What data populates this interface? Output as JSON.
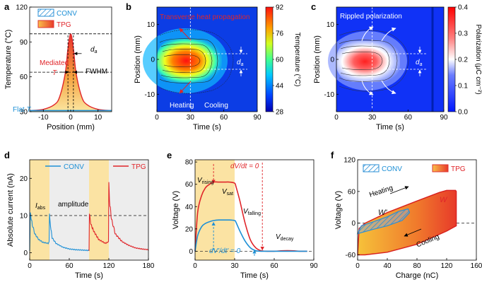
{
  "panels": {
    "a": {
      "letter": "a"
    },
    "b": {
      "letter": "b",
      "heat_label": "Transverse heat propagation",
      "heating_label": "Heating",
      "cooling_label": "Cooling",
      "da_label": "d",
      "da_sub": "a",
      "cbar_label": "Temperature (°C)"
    },
    "c": {
      "letter": "c",
      "title_label": "Rippled polarization",
      "da_label": "d",
      "da_sub": "a",
      "cbar_label": "Polarization (μC cm⁻²)"
    },
    "d": {
      "letter": "d",
      "iabs_label": "I",
      "iabs_sub": "abs",
      "amp_label": "amplitude"
    },
    "e": {
      "letter": "e",
      "vrising": "V",
      "vrising_sub": "rising",
      "vsat": "V",
      "vsat_sub": "sat",
      "vfalling": "V",
      "vfalling_sub": "falling",
      "vdecay": "V",
      "vdecay_sub": "decay",
      "dvdt_red": "dV/dt = 0",
      "dvdt_blue": "dV'/dt' = 0"
    },
    "f": {
      "letter": "f",
      "w_label": "W",
      "wp_label": "W'",
      "heating_label": "Heating",
      "cooling_label": "Cooling"
    }
  },
  "chart_data": [
    {
      "id": "a",
      "type": "line",
      "title": "",
      "xlabel": "Position (mm)",
      "ylabel": "Temperature (°C)",
      "xlim": [
        -15,
        15
      ],
      "ylim": [
        30,
        120
      ],
      "xticks": [
        -10,
        0,
        10
      ],
      "yticks": [
        30,
        60,
        90,
        120
      ],
      "legend": [
        "CONV",
        "TPG"
      ],
      "annotations": {
        "mediated": "Mediated",
        "mediated_T": "T",
        "flat": "Flat",
        "flat_T": "T",
        "fwhm": "FWHM",
        "da": "d",
        "da_sub": "a"
      },
      "series": [
        {
          "name": "TPG",
          "x": [
            -15,
            -10,
            -6,
            -4,
            -2,
            -1,
            0,
            1,
            2,
            4,
            6,
            10,
            15
          ],
          "y": [
            31,
            32,
            36,
            43,
            63,
            84,
            97,
            84,
            63,
            43,
            36,
            32,
            31
          ]
        },
        {
          "name": "CONV",
          "x": [
            -15,
            15
          ],
          "y": [
            31,
            31
          ]
        }
      ],
      "reference_lines": {
        "peak": 97,
        "half_max": 64,
        "range_x": [
          -1,
          1
        ]
      }
    },
    {
      "id": "b",
      "type": "heatmap",
      "xlabel": "Time (s)",
      "ylabel": "Position (mm)",
      "xlim": [
        0,
        90
      ],
      "ylim": [
        -15,
        15
      ],
      "xticks": [
        0,
        30,
        60,
        90
      ],
      "xtick_labels": [
        "0",
        "30",
        "60",
        "90"
      ],
      "yticks": [
        -10,
        0,
        10
      ],
      "colorbar": {
        "label": "Temperature (°C)",
        "min": 28,
        "max": 92,
        "ticks": [
          28,
          44,
          60,
          76,
          92
        ]
      }
    },
    {
      "id": "c",
      "type": "heatmap",
      "xlabel": "Time (s)",
      "ylabel": "Position (mm)",
      "xlim": [
        0,
        90
      ],
      "ylim": [
        -15,
        15
      ],
      "xticks": [
        0,
        30,
        60,
        90
      ],
      "yticks": [
        -10,
        0,
        10
      ],
      "colorbar": {
        "label": "Polarization (μC cm⁻²)",
        "min": 0.0,
        "max": 0.4,
        "ticks": [
          0.0,
          0.1,
          0.2,
          0.3,
          0.4
        ]
      }
    },
    {
      "id": "d",
      "type": "line",
      "xlabel": "Time (s)",
      "ylabel": "Absolute current (nA)",
      "xlim": [
        0,
        180
      ],
      "ylim": [
        -2,
        25
      ],
      "xticks": [
        0,
        60,
        120,
        180
      ],
      "yticks": [
        0,
        10,
        20
      ],
      "legend": [
        "CONV",
        "TPG"
      ],
      "reference_line_y": 10,
      "shaded_x": [
        [
          0,
          30
        ],
        [
          90,
          120
        ]
      ],
      "series": [
        {
          "name": "CONV",
          "x": [
            0,
            1,
            4,
            8,
            14,
            20,
            28,
            29.5,
            30,
            31,
            34,
            40,
            50,
            60,
            70,
            80,
            90
          ],
          "y": [
            0.5,
            10.5,
            7.5,
            5,
            3.5,
            2.8,
            2.5,
            3,
            10.5,
            8,
            4,
            2.5,
            1.5,
            1,
            0.8,
            0.7,
            0.6
          ]
        },
        {
          "name": "TPG",
          "x": [
            90,
            90.5,
            93,
            98,
            105,
            115,
            119.5,
            120,
            121,
            124,
            130,
            140,
            150,
            160,
            170,
            180
          ],
          "y": [
            0.5,
            10.5,
            7.5,
            5.5,
            3.5,
            2.5,
            3,
            19,
            14,
            9,
            5,
            3,
            2,
            1.3,
            1,
            0.8
          ]
        }
      ]
    },
    {
      "id": "e",
      "type": "line",
      "xlabel": "Time (s)",
      "ylabel": "Voltage (V)",
      "xlim": [
        0,
        90
      ],
      "ylim": [
        -8,
        82
      ],
      "xticks": [
        0,
        30,
        60,
        90
      ],
      "yticks": [
        0,
        20,
        40,
        60,
        80
      ],
      "shaded_x": [
        [
          0,
          30
        ]
      ],
      "markers": {
        "red_dash_x": [
          14,
          51
        ],
        "blue_dash_x": [
          14,
          45
        ]
      },
      "series": [
        {
          "name": "TPG",
          "x": [
            0,
            2,
            5,
            8,
            11,
            14,
            18,
            22,
            26,
            30,
            31,
            34,
            38,
            42,
            46,
            50,
            55,
            60,
            70,
            80,
            85
          ],
          "y": [
            0,
            35,
            50,
            57,
            60,
            62,
            62,
            62,
            62,
            61,
            58,
            45,
            25,
            10,
            3,
            0.5,
            0,
            0,
            0.5,
            0,
            0
          ]
        },
        {
          "name": "CONV",
          "x": [
            0,
            2,
            5,
            8,
            11,
            14,
            18,
            22,
            26,
            30,
            31,
            34,
            38,
            42,
            46,
            50,
            55,
            60,
            70,
            80,
            85
          ],
          "y": [
            0,
            14,
            22,
            25,
            26.5,
            27.5,
            28,
            28,
            28,
            27.5,
            26,
            18,
            9,
            3,
            0.5,
            0,
            0,
            0,
            0,
            0,
            0
          ]
        }
      ]
    },
    {
      "id": "f",
      "type": "area",
      "xlabel": "Charge (nC)",
      "ylabel": "Voltage (V)",
      "xlim": [
        0,
        160
      ],
      "ylim": [
        -70,
        120
      ],
      "xticks": [
        0,
        40,
        80,
        120,
        160
      ],
      "yticks": [
        -60,
        0,
        60,
        120
      ],
      "legend": [
        "CONV",
        "TPG"
      ],
      "series": [
        {
          "name": "TPG",
          "x": [
            0,
            2,
            10,
            40,
            80,
            110,
            120,
            132,
            133,
            133,
            120,
            80,
            40,
            10,
            0
          ],
          "y": [
            -60,
            -10,
            0,
            20,
            42,
            58,
            62,
            62,
            60,
            -5,
            -15,
            -40,
            -55,
            -60,
            -60
          ]
        },
        {
          "name": "CONV",
          "x": [
            0,
            5,
            20,
            40,
            55,
            68,
            70,
            60,
            40,
            20,
            5,
            0
          ],
          "y": [
            -20,
            -5,
            2,
            12,
            22,
            27,
            20,
            5,
            -5,
            -12,
            -18,
            -20
          ]
        }
      ]
    }
  ]
}
